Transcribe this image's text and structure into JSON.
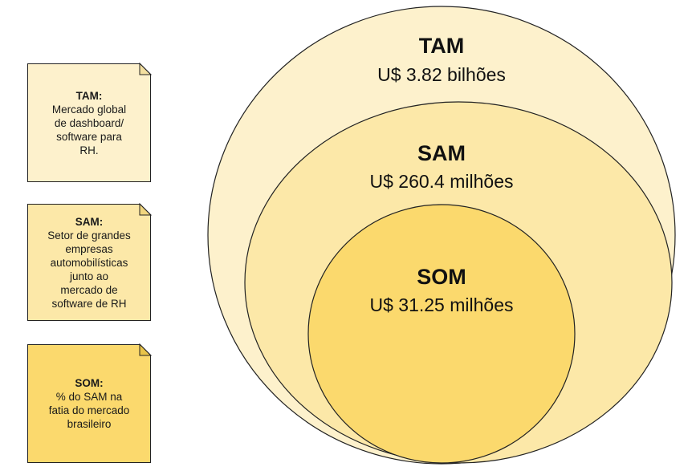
{
  "notes": {
    "tam": {
      "title": "TAM:",
      "body": "Mercado global\nde dashboard/\nsoftware para\nRH."
    },
    "sam": {
      "title": "SAM:",
      "body": "Setor de grandes\nempresas\nautomobilísticas\njunto ao\nmercado de\nsoftware de RH"
    },
    "som": {
      "title": "SOM:",
      "body": "% do SAM na\nfatia do mercado\nbrasileiro"
    }
  },
  "rings": {
    "tam": {
      "title": "TAM",
      "value": "U$ 3.82 bilhões"
    },
    "sam": {
      "title": "SAM",
      "value": "U$ 260.4 milhões"
    },
    "som": {
      "title": "SOM",
      "value": "U$ 31.25 milhões"
    }
  },
  "colors": {
    "tam_fill": "#fdf1cc",
    "sam_fill": "#fce8a8",
    "som_fill": "#fbd96d",
    "stroke": "#222222"
  }
}
